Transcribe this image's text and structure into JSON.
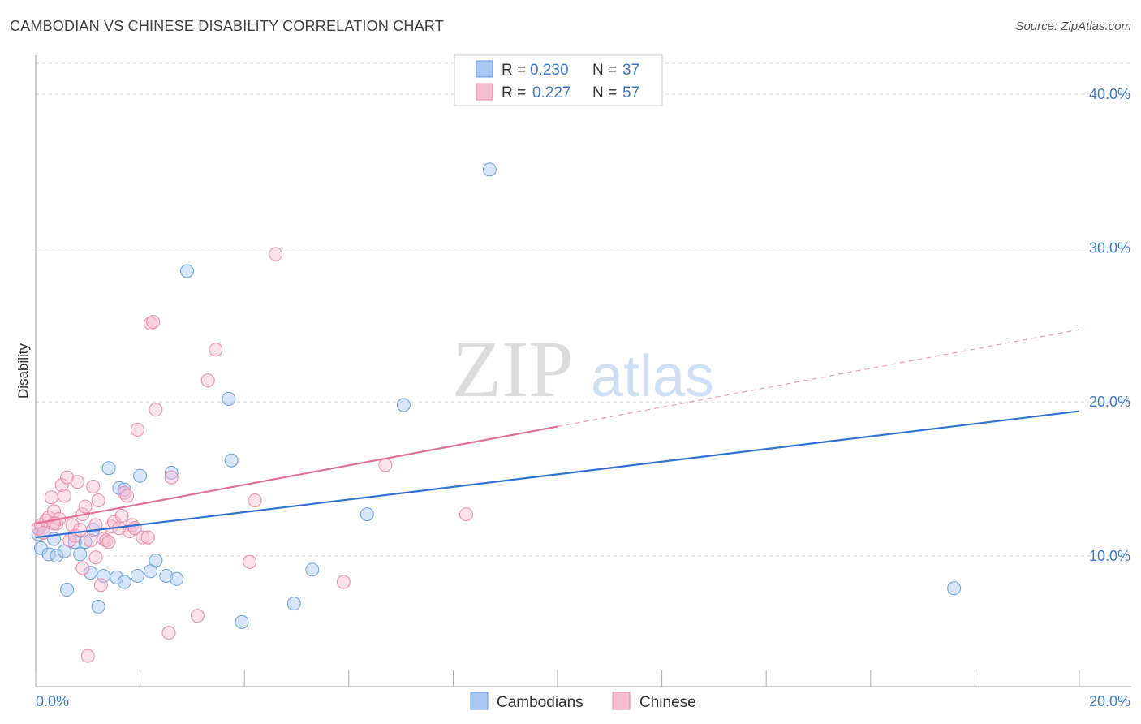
{
  "header": {
    "title": "CAMBODIAN VS CHINESE DISABILITY CORRELATION CHART",
    "source": "Source: ZipAtlas.com"
  },
  "watermark": {
    "zip": "ZIP",
    "atlas": "atlas"
  },
  "colors": {
    "blue_fill": "#a9c8f2",
    "blue_stroke": "#6b9de0",
    "blue_line": "#2f72d0",
    "pink_fill": "#f6bcd0",
    "pink_stroke": "#e88aab",
    "pink_line": "#e07099",
    "tick_text": "#3b78c8",
    "grid": "#d8d8d8"
  },
  "legend_top": {
    "rows": [
      {
        "r_label": "R = ",
        "r_value": "0.230",
        "n_label": "N = ",
        "n_value": "37",
        "color": "blue"
      },
      {
        "r_label": "R = ",
        "r_value": "0.227",
        "n_label": "N = ",
        "n_value": "57",
        "color": "pink"
      }
    ]
  },
  "legend_bottom": {
    "items": [
      {
        "label": "Cambodians",
        "color": "blue"
      },
      {
        "label": "Chinese",
        "color": "pink"
      }
    ]
  },
  "chart_data": {
    "type": "scatter",
    "title": "CAMBODIAN VS CHINESE DISABILITY CORRELATION CHART",
    "xlabel": "",
    "ylabel": "Disability",
    "xlim": [
      0,
      20
    ],
    "ylim": [
      1.5,
      42
    ],
    "x_tick_labels": [
      {
        "value": 0,
        "label": "0.0%"
      },
      {
        "value": 20,
        "label": "20.0%"
      }
    ],
    "x_minor_ticks": [
      0,
      2,
      4,
      6,
      8,
      10,
      12,
      14,
      16,
      18,
      20
    ],
    "y_ticks": [
      {
        "value": 10,
        "label": "10.0%"
      },
      {
        "value": 20,
        "label": "20.0%"
      },
      {
        "value": 30,
        "label": "30.0%"
      },
      {
        "value": 40,
        "label": "40.0%"
      }
    ],
    "series": [
      {
        "name": "Cambodians",
        "color": "blue",
        "r": 0.23,
        "n": 37,
        "trend": {
          "x0": 0,
          "y0": 11.2,
          "x1": 20,
          "y1": 19.4,
          "solid_until": 20
        },
        "points": [
          [
            0.05,
            11.4
          ],
          [
            0.1,
            10.5
          ],
          [
            0.25,
            10.1
          ],
          [
            0.35,
            11.1
          ],
          [
            0.4,
            10.0
          ],
          [
            0.55,
            10.3
          ],
          [
            0.6,
            7.8
          ],
          [
            0.75,
            10.9
          ],
          [
            0.85,
            10.1
          ],
          [
            0.95,
            10.9
          ],
          [
            1.05,
            8.9
          ],
          [
            1.1,
            11.7
          ],
          [
            1.2,
            6.7
          ],
          [
            1.3,
            8.7
          ],
          [
            1.4,
            15.7
          ],
          [
            1.55,
            8.6
          ],
          [
            1.6,
            14.4
          ],
          [
            1.7,
            8.3
          ],
          [
            1.7,
            14.3
          ],
          [
            1.95,
            8.7
          ],
          [
            2.0,
            15.2
          ],
          [
            2.2,
            9.0
          ],
          [
            2.3,
            9.7
          ],
          [
            2.5,
            8.7
          ],
          [
            2.6,
            15.4
          ],
          [
            2.7,
            8.5
          ],
          [
            2.9,
            28.5
          ],
          [
            3.7,
            20.2
          ],
          [
            3.75,
            16.2
          ],
          [
            3.95,
            5.7
          ],
          [
            4.95,
            6.9
          ],
          [
            5.3,
            9.1
          ],
          [
            6.35,
            12.7
          ],
          [
            7.05,
            19.8
          ],
          [
            8.7,
            35.1
          ],
          [
            17.6,
            7.9
          ],
          [
            0.15,
            11.5
          ]
        ]
      },
      {
        "name": "Chinese",
        "color": "pink",
        "r": 0.227,
        "n": 57,
        "trend": {
          "x0": 0,
          "y0": 12.1,
          "x1": 20,
          "y1": 24.7,
          "solid_until": 10
        },
        "points": [
          [
            0.05,
            11.8
          ],
          [
            0.1,
            12.0
          ],
          [
            0.15,
            11.5
          ],
          [
            0.2,
            12.3
          ],
          [
            0.25,
            12.5
          ],
          [
            0.3,
            13.8
          ],
          [
            0.35,
            12.9
          ],
          [
            0.4,
            12.1
          ],
          [
            0.45,
            12.4
          ],
          [
            0.5,
            14.6
          ],
          [
            0.55,
            13.9
          ],
          [
            0.6,
            15.1
          ],
          [
            0.65,
            11.0
          ],
          [
            0.7,
            12.0
          ],
          [
            0.75,
            11.3
          ],
          [
            0.8,
            14.8
          ],
          [
            0.85,
            11.7
          ],
          [
            0.9,
            12.7
          ],
          [
            0.9,
            9.2
          ],
          [
            0.95,
            13.2
          ],
          [
            1.0,
            3.5
          ],
          [
            1.05,
            11.0
          ],
          [
            1.1,
            14.5
          ],
          [
            1.15,
            9.9
          ],
          [
            1.2,
            13.6
          ],
          [
            1.25,
            8.1
          ],
          [
            1.3,
            11.1
          ],
          [
            1.35,
            11.0
          ],
          [
            1.4,
            10.9
          ],
          [
            1.45,
            11.9
          ],
          [
            1.5,
            12.2
          ],
          [
            1.6,
            11.8
          ],
          [
            1.65,
            12.6
          ],
          [
            1.7,
            14.1
          ],
          [
            1.75,
            13.9
          ],
          [
            1.8,
            11.6
          ],
          [
            1.85,
            12.0
          ],
          [
            1.9,
            11.8
          ],
          [
            1.95,
            18.2
          ],
          [
            2.05,
            11.2
          ],
          [
            2.15,
            11.2
          ],
          [
            2.2,
            25.1
          ],
          [
            2.25,
            25.2
          ],
          [
            2.3,
            19.5
          ],
          [
            2.55,
            5.0
          ],
          [
            2.6,
            15.1
          ],
          [
            3.1,
            6.1
          ],
          [
            3.3,
            21.4
          ],
          [
            3.45,
            23.4
          ],
          [
            4.1,
            9.6
          ],
          [
            4.2,
            13.6
          ],
          [
            4.6,
            29.6
          ],
          [
            5.9,
            8.3
          ],
          [
            6.7,
            15.9
          ],
          [
            8.25,
            12.7
          ],
          [
            0.35,
            12.1
          ],
          [
            1.15,
            12.0
          ]
        ]
      }
    ]
  }
}
